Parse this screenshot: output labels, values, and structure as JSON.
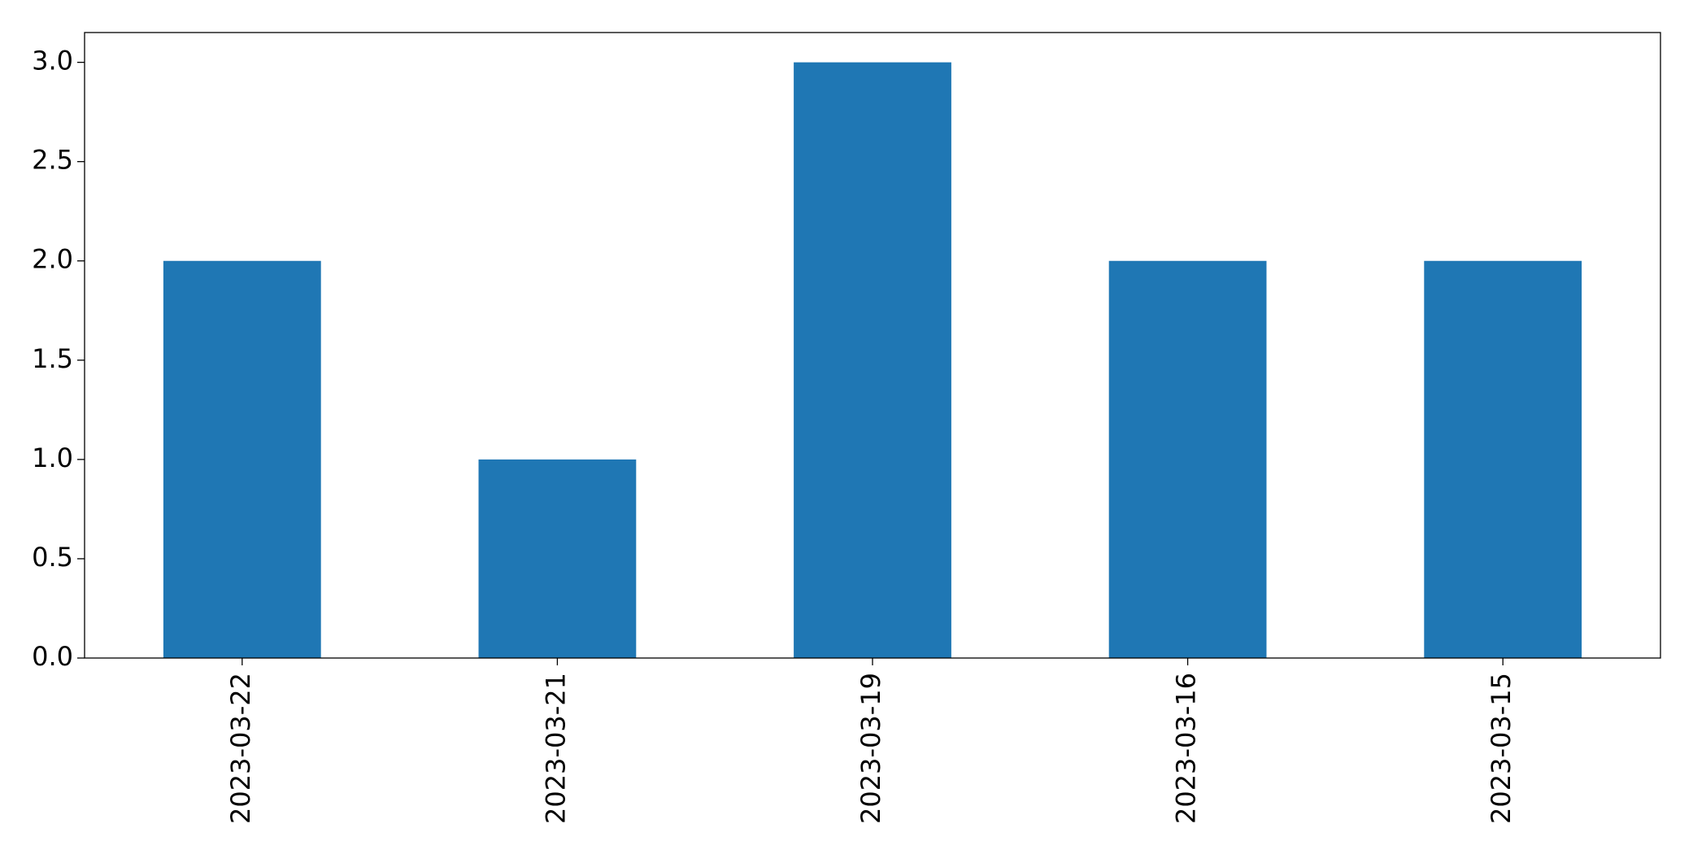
{
  "chart_data": {
    "type": "bar",
    "categories": [
      "2023-03-22",
      "2023-03-21",
      "2023-03-19",
      "2023-03-16",
      "2023-03-15"
    ],
    "values": [
      2,
      1,
      3,
      2,
      2
    ],
    "color": "#1f77b4",
    "ylim": [
      0,
      3.15
    ],
    "yticks": [
      {
        "value": 0,
        "label": "0.0"
      },
      {
        "value": 0.5,
        "label": "0.5"
      },
      {
        "value": 1,
        "label": "1.0"
      },
      {
        "value": 1.5,
        "label": "1.5"
      },
      {
        "value": 2,
        "label": "2.0"
      },
      {
        "value": 2.5,
        "label": "2.5"
      },
      {
        "value": 3,
        "label": "3.0"
      }
    ],
    "grid": false
  }
}
